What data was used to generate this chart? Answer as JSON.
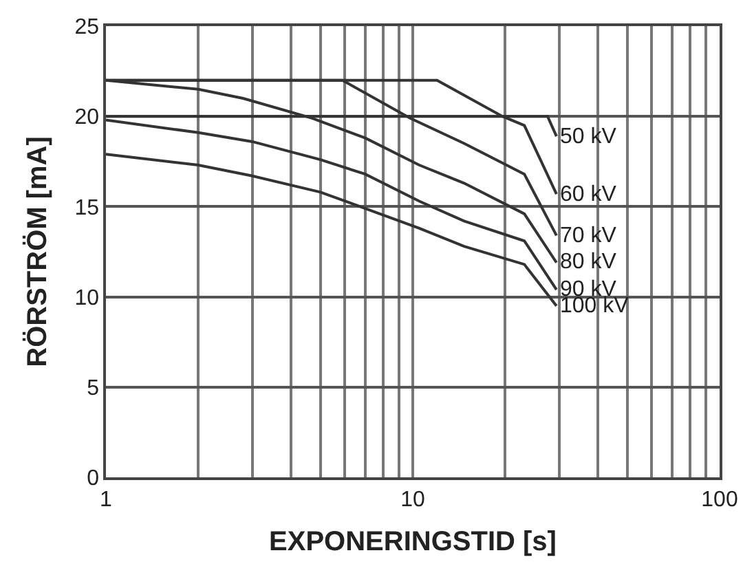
{
  "chart_data": {
    "type": "line",
    "xlabel": "EXPONERINGSTID [s]",
    "ylabel": "RÖRSTRÖM [mA]",
    "log": "x",
    "xlim": [
      1,
      100
    ],
    "ylim": [
      0,
      25
    ],
    "xticks": [
      1,
      {
        "value": 2,
        "label": null
      },
      {
        "value": 3,
        "label": null
      },
      {
        "value": 4,
        "label": null
      },
      {
        "value": 5,
        "label": null
      },
      {
        "value": 6,
        "label": null
      },
      {
        "value": 7,
        "label": null
      },
      {
        "value": 8,
        "label": null
      },
      {
        "value": 9,
        "label": null
      },
      10,
      {
        "value": 20,
        "label": null
      },
      {
        "value": 30,
        "label": null
      },
      {
        "value": 40,
        "label": null
      },
      {
        "value": 50,
        "label": null
      },
      {
        "value": 60,
        "label": null
      },
      {
        "value": 70,
        "label": null
      },
      {
        "value": 80,
        "label": null
      },
      {
        "value": 90,
        "label": null
      },
      100
    ],
    "yticks": [
      0,
      5,
      10,
      15,
      20,
      25
    ],
    "grid": true,
    "legend": false,
    "marker": "none",
    "line_style": "solid",
    "series": [
      {
        "name": "50 kV",
        "color": "#333333",
        "x": [
          1,
          27.5,
          29.4
        ],
        "values": [
          20,
          20,
          18.9
        ]
      },
      {
        "name": "60 kV",
        "color": "#333333",
        "x": [
          1,
          12,
          19.6,
          23.1,
          29.4
        ],
        "values": [
          22,
          22,
          20,
          19.5,
          15.7
        ]
      },
      {
        "name": "70 kV",
        "color": "#333333",
        "x": [
          1,
          5.9,
          9.8,
          14.7,
          23.1,
          29.4
        ],
        "values": [
          22,
          22,
          19.9,
          18.5,
          16.8,
          13.4
        ]
      },
      {
        "name": "80 kV",
        "color": "#333333",
        "x": [
          1,
          2,
          2.8,
          4.7,
          7,
          10.5,
          14.7,
          23.1,
          29.4
        ],
        "values": [
          22,
          21.5,
          21.0,
          19.9,
          18.8,
          17.3,
          16.3,
          14.6,
          11.9
        ]
      },
      {
        "name": "90 kV",
        "color": "#333333",
        "x": [
          1,
          2,
          3,
          5,
          7,
          10.5,
          14.7,
          23.1,
          29.4
        ],
        "values": [
          19.8,
          19.1,
          18.6,
          17.6,
          16.8,
          15.3,
          14.2,
          13.1,
          10.4
        ]
      },
      {
        "name": "100 kV",
        "color": "#333333",
        "x": [
          1,
          2,
          3,
          5,
          7,
          10.5,
          14.7,
          23.1,
          29.4
        ],
        "values": [
          17.9,
          17.3,
          16.7,
          15.8,
          14.9,
          13.8,
          12.8,
          11.8,
          9.5
        ]
      }
    ]
  }
}
